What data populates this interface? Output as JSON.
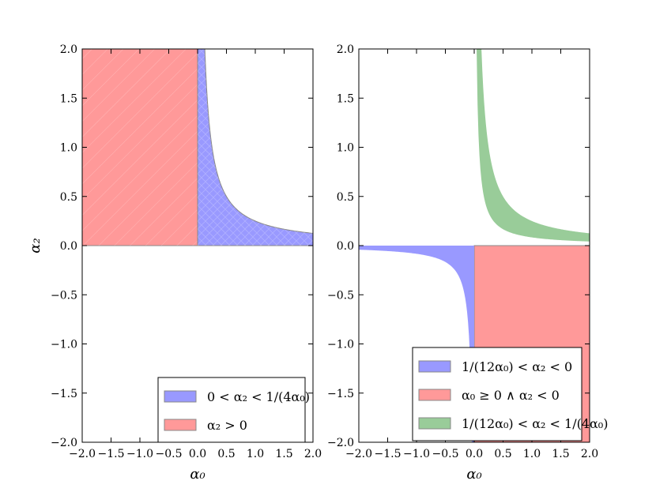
{
  "chart_data": [
    {
      "type": "area",
      "panel": "left",
      "xlabel": "α₀",
      "ylabel": "α₂",
      "xlim": [
        -2.0,
        2.0
      ],
      "ylim": [
        -2.0,
        2.0
      ],
      "xticks": [
        "−2.0",
        "−1.5",
        "−1.0",
        "−0.5",
        "0.0",
        "0.5",
        "1.0",
        "1.5",
        "2.0"
      ],
      "yticks": [
        "−2.0",
        "−1.5",
        "−1.0",
        "−0.5",
        "0.0",
        "0.5",
        "1.0",
        "1.5",
        "2.0"
      ],
      "legend_position": "lower-right",
      "series": [
        {
          "name": "0 < α₂ < 1/(4α₀)",
          "color": "#9999ff",
          "region": "0 < alpha2 < 1/(4*alpha0), alpha0 > 0",
          "hatch": true
        },
        {
          "name": "α₂ > 0",
          "color": "#ff9999",
          "region": "alpha2 > 0, alpha0 < 0",
          "hatch": true
        }
      ]
    },
    {
      "type": "area",
      "panel": "right",
      "xlabel": "α₀",
      "xlim": [
        -2.0,
        2.0
      ],
      "ylim": [
        -2.0,
        2.0
      ],
      "xticks": [
        "−2.0",
        "−1.5",
        "−1.0",
        "−0.5",
        "0.0",
        "0.5",
        "1.0",
        "1.5",
        "2.0"
      ],
      "yticks": [
        "−2.0",
        "−1.5",
        "−1.0",
        "−0.5",
        "0.0",
        "0.5",
        "1.0",
        "1.5",
        "2.0"
      ],
      "legend_position": "lower-right",
      "series": [
        {
          "name": "1/(12α₀) < α₂ < 0",
          "color": "#9999ff",
          "region": "1/(12*alpha0) < alpha2 < 0, alpha0 < 0",
          "hatch": false
        },
        {
          "name": "α₀ ≥ 0 ∧ α₂ < 0",
          "color": "#ff9999",
          "region": "alpha0 >= 0, alpha2 < 0",
          "hatch": false
        },
        {
          "name": "1/(12α₀) < α₂ < 1/(4α₀)",
          "color": "#99cc99",
          "region": "1/(12*alpha0) < alpha2 < 1/(4*alpha0), alpha0 > 0",
          "hatch": false
        }
      ]
    }
  ]
}
